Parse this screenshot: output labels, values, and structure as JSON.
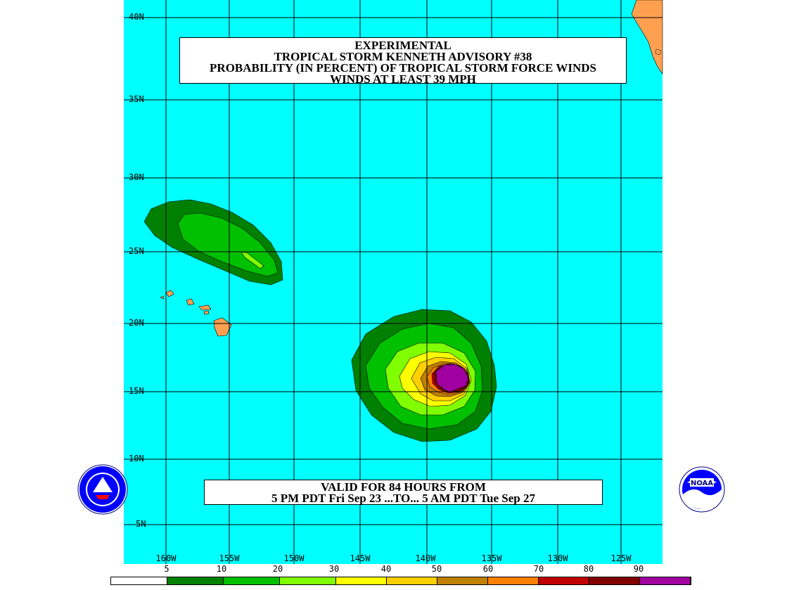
{
  "title": {
    "lines": [
      "EXPERIMENTAL",
      "TROPICAL STORM KENNETH ADVISORY #38",
      "PROBABILITY (IN PERCENT) OF TROPICAL STORM FORCE WINDS",
      "WINDS AT LEAST 39 MPH"
    ]
  },
  "valid": {
    "line1": "VALID FOR 84 HOURS FROM",
    "line2": "5 PM PDT Fri Sep 23 ...TO... 5 AM PDT Tue Sep 27"
  },
  "latitude_labels": [
    "40N",
    "35N",
    "30N",
    "25N",
    "20N",
    "15N",
    "10N",
    "5N"
  ],
  "longitude_labels": [
    "160W",
    "155W",
    "150W",
    "145W",
    "140W",
    "135W",
    "130W",
    "125W"
  ],
  "legend": {
    "labels": [
      "5",
      "10",
      "20",
      "30",
      "40",
      "50",
      "60",
      "70",
      "80",
      "90"
    ],
    "colors": [
      "#ffffff",
      "#008000",
      "#00c000",
      "#80ff00",
      "#ffff00",
      "#ffd000",
      "#c08000",
      "#ff8000",
      "#c00000",
      "#800000",
      "#a000a0"
    ]
  },
  "colors": {
    "ocean": "#00ffff",
    "land": "#ffa050",
    "grid": "#000000"
  },
  "logos": [
    "nws-logo",
    "noaa-logo"
  ]
}
